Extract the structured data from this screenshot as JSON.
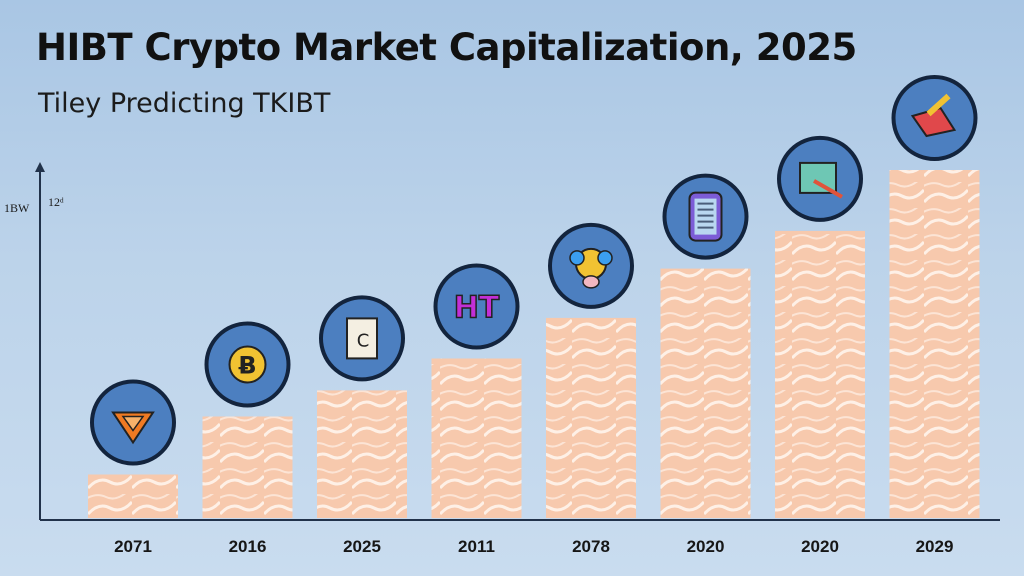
{
  "chart_data": {
    "type": "bar",
    "title": "HIBT Crypto Market Capitalization, 2025",
    "subtitle": "Tiley Predicting TKIBT",
    "ylabel": "1BW",
    "y_tick_label": "12ᵈ",
    "ylim": [
      0,
      12
    ],
    "categories": [
      "2071",
      "2016",
      "2025",
      "2011",
      "2078",
      "2020",
      "2020",
      "2029"
    ],
    "values": [
      1.5,
      3.5,
      4.4,
      5.5,
      6.9,
      8.6,
      9.9,
      12.0
    ],
    "grid": false,
    "legend": "none",
    "icons": [
      "fox-head-icon",
      "bitcoin-coin-icon",
      "document-icon",
      "hibt-logo-icon",
      "bear-face-icon",
      "phone-icon",
      "card-pen-icon",
      "ticket-pen-icon"
    ],
    "colors": {
      "bar_fill": "#f7c9ad",
      "bar_wave": "#ffffff",
      "icon_circle": "#4c7fc0",
      "icon_ring": "#13243d",
      "axis": "#21324a"
    }
  }
}
